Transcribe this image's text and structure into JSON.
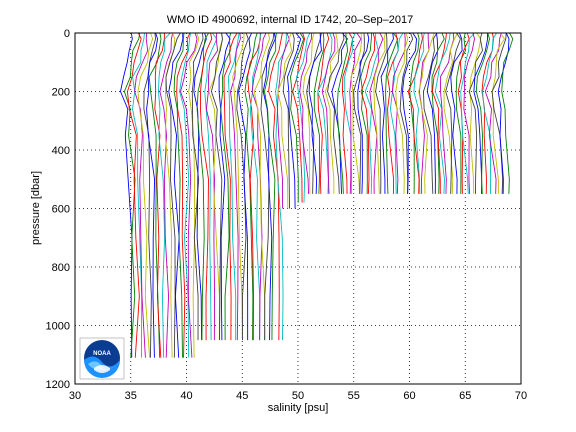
{
  "chart_data": {
    "type": "line",
    "title": "WMO ID 4900692, internal ID 1742, 20–Sep–2017",
    "xlabel": "salinity [psu]",
    "ylabel": "pressure [dbar]",
    "xlim": [
      30,
      70
    ],
    "ylim": [
      1200,
      0
    ],
    "y_inverted": true,
    "grid": true,
    "xticks": [
      30,
      35,
      40,
      45,
      50,
      55,
      60,
      65,
      70
    ],
    "yticks": [
      0,
      200,
      400,
      600,
      800,
      1000,
      1200
    ],
    "profile_offset_step": 0.3,
    "profile_count": 114,
    "base_salinity_start": 34.6,
    "series_colors": [
      "#0000ff",
      "#008000",
      "#ff0000",
      "#00bfbf",
      "#bf00bf",
      "#bfbf00",
      "#404040"
    ],
    "depth_segments": [
      {
        "profiles_from": 0,
        "profiles_to": 19,
        "max_pressure": 1110
      },
      {
        "profiles_from": 20,
        "profiles_to": 45,
        "max_pressure": 1050
      },
      {
        "profiles_from": 46,
        "profiles_to": 49,
        "max_pressure": 600
      },
      {
        "profiles_from": 50,
        "profiles_to": 52,
        "max_pressure": 580
      },
      {
        "profiles_from": 53,
        "profiles_to": 113,
        "max_pressure": 550
      }
    ],
    "profile_shape": [
      {
        "pressure": 0,
        "salinity_delta": 0.7
      },
      {
        "pressure": 20,
        "salinity_delta": 0.7
      },
      {
        "pressure": 60,
        "salinity_delta": 0.5
      },
      {
        "pressure": 100,
        "salinity_delta": 0.2
      },
      {
        "pressure": 150,
        "salinity_delta": -0.1
      },
      {
        "pressure": 200,
        "salinity_delta": -0.3
      },
      {
        "pressure": 260,
        "salinity_delta": -0.1
      },
      {
        "pressure": 350,
        "salinity_delta": 0.1
      },
      {
        "pressure": 500,
        "salinity_delta": 0.25
      },
      {
        "pressure": 700,
        "salinity_delta": 0.3
      },
      {
        "pressure": 900,
        "salinity_delta": 0.32
      },
      {
        "pressure": 1110,
        "salinity_delta": 0.35
      }
    ]
  },
  "logo": {
    "text": "NOAA"
  }
}
